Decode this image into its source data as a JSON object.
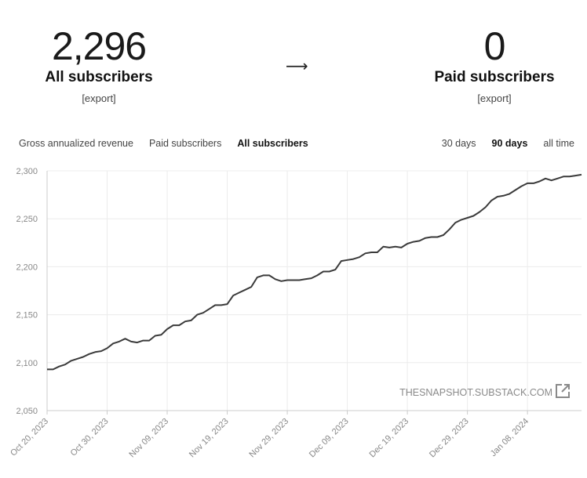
{
  "stats": {
    "all": {
      "value": "2,296",
      "label": "All subscribers",
      "export": "[export]"
    },
    "arrow": "⟶",
    "paid": {
      "value": "0",
      "label": "Paid subscribers",
      "export": "[export]"
    }
  },
  "metric_tabs": [
    {
      "label": "Gross annualized revenue",
      "active": false
    },
    {
      "label": "Paid subscribers",
      "active": false
    },
    {
      "label": "All subscribers",
      "active": true
    }
  ],
  "range_tabs": [
    {
      "label": "30 days",
      "active": false
    },
    {
      "label": "90 days",
      "active": true
    },
    {
      "label": "all time",
      "active": false
    }
  ],
  "watermark": "THESNAPSHOT.SUBSTACK.COM",
  "colors": {
    "line": "#3a3a3a",
    "grid": "#ececec",
    "axis": "#cccccc",
    "tick": "#888888"
  },
  "chart_data": {
    "type": "line",
    "title": "",
    "xlabel": "",
    "ylabel": "",
    "ylim": [
      2050,
      2300
    ],
    "y_ticks": [
      "2,300",
      "2,250",
      "2,200",
      "2,150",
      "2,100",
      "2,050"
    ],
    "x_ticks": [
      "Oct 20, 2023",
      "Oct 30, 2023",
      "Nov 09, 2023",
      "Nov 19, 2023",
      "Nov 29, 2023",
      "Dec 09, 2023",
      "Dec 19, 2023",
      "Dec 29, 2023",
      "Jan 08, 2024"
    ],
    "x_start": "Oct 20, 2023",
    "x_end": "Jan 17, 2024",
    "grid": true,
    "series": [
      {
        "values": [
          2093,
          2093,
          2096,
          2098,
          2102,
          2104,
          2106,
          2109,
          2111,
          2112,
          2115,
          2120,
          2122,
          2125,
          2122,
          2121,
          2123,
          2123,
          2128,
          2129,
          2135,
          2139,
          2139,
          2143,
          2144,
          2150,
          2152,
          2156,
          2160,
          2160,
          2161,
          2170,
          2173,
          2176,
          2179,
          2189,
          2191,
          2191,
          2187,
          2185,
          2186,
          2186,
          2186,
          2187,
          2188,
          2191,
          2195,
          2195,
          2197,
          2206,
          2207,
          2208,
          2210,
          2214,
          2215,
          2215,
          2221,
          2220,
          2221,
          2220,
          2224,
          2226,
          2227,
          2230,
          2231,
          2231,
          2233,
          2239,
          2246,
          2249,
          2251,
          2253,
          2257,
          2262,
          2269,
          2273,
          2274,
          2276,
          2280,
          2284,
          2287,
          2287,
          2289,
          2292,
          2290,
          2292,
          2294,
          2294,
          2295,
          2296
        ]
      }
    ]
  }
}
